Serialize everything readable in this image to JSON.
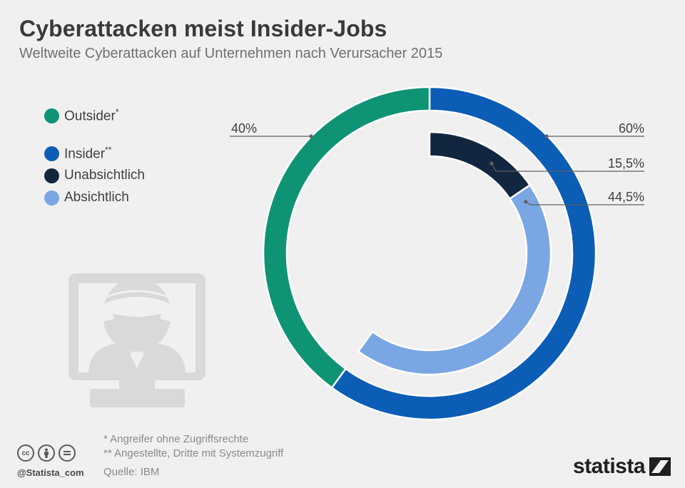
{
  "title": "Cyberattacken meist Insider-Jobs",
  "subtitle": "Weltweite Cyberattacken auf Unternehmen nach Verursacher 2015",
  "legend": [
    {
      "label": "Outsider",
      "sup": "*",
      "color": "#0e9474"
    },
    {
      "label": "Insider",
      "sup": "**",
      "color": "#0b5db5"
    },
    {
      "label": "Unabsichtlich",
      "sup": "",
      "color": "#13263f"
    },
    {
      "label": "Absichtlich",
      "sup": "",
      "color": "#7aa6e3"
    }
  ],
  "chart_data": {
    "type": "pie",
    "outer_ring": [
      {
        "name": "Outsider",
        "value": 40,
        "label": "40%",
        "color": "#0e9474"
      },
      {
        "name": "Insider",
        "value": 60,
        "label": "60%",
        "color": "#0b5db5"
      }
    ],
    "inner_ring": [
      {
        "name": "Unabsichtlich",
        "value": 15.5,
        "label": "15,5%",
        "color": "#13263f"
      },
      {
        "name": "Absichtlich",
        "value": 44.5,
        "label": "44,5%",
        "color": "#7aa6e3"
      }
    ]
  },
  "notes": {
    "note1": "*   Angreifer ohne Zugriffsrechte",
    "note2": "** Angestellte, Dritte mit Systemzugriff",
    "source": "Quelle: IBM"
  },
  "footer": {
    "handle": "@Statista_com",
    "cc_icons": [
      "cc",
      "by",
      "nd"
    ],
    "brand": "statista"
  }
}
